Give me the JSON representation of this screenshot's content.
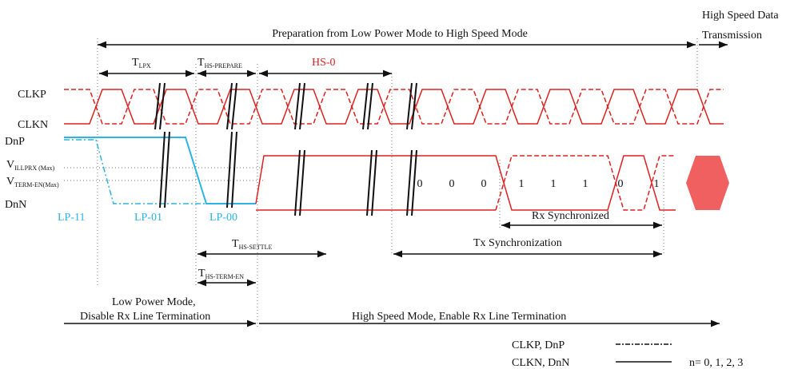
{
  "header": {
    "title": "Preparation from Low Power Mode to High Speed Mode",
    "right": [
      "High Speed Data",
      "Transmission"
    ]
  },
  "timings": {
    "lpx": {
      "main": "T",
      "sub": "LPX"
    },
    "prepare": {
      "main": "T",
      "sub": "HS-PREPARE"
    },
    "hs0": "HS-0",
    "settle": {
      "main": "T",
      "sub": "HS-SETTLE"
    },
    "termen": {
      "main": "T",
      "sub": "HS-TERM-EN"
    }
  },
  "signals": {
    "clkp": "CLKP",
    "clkn": "CLKN",
    "dnp": "DnP",
    "dnn": "DnN",
    "vil": {
      "main": "V",
      "sub": "ILLPRX (Max)"
    },
    "vterm": {
      "main": "V",
      "sub": "TERM-EN(Max)"
    }
  },
  "states": [
    "LP-11",
    "LP-01",
    "LP-00"
  ],
  "bits": [
    "0",
    "0",
    "0",
    "1",
    "1",
    "1",
    "0",
    "1"
  ],
  "sync": {
    "rx": "Rx Synchronized",
    "tx": "Tx Synchronization"
  },
  "modes": {
    "low": [
      "Low Power Mode,",
      "Disable Rx Line Termination"
    ],
    "high": "High Speed Mode, Enable Rx Line Termination"
  },
  "legend": {
    "dashed": "CLKP, DnP",
    "solid": "CLKN, DnN",
    "note": "n= 0, 1, 2, 3"
  }
}
